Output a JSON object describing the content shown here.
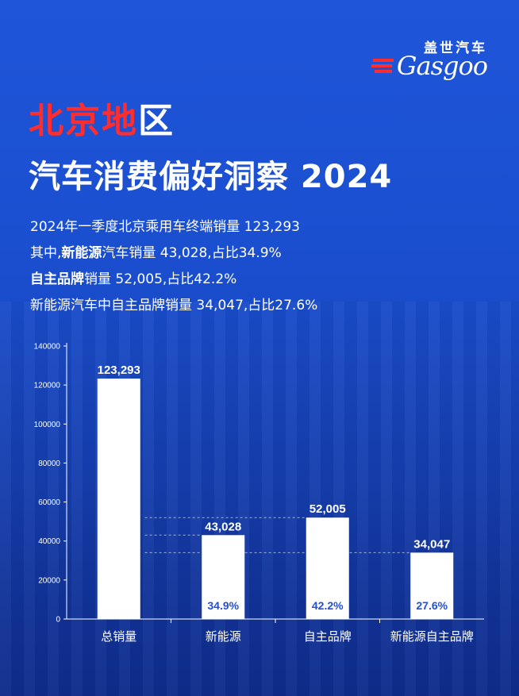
{
  "brand": {
    "name_cn": "盖世汽车",
    "name_en": "Gasgoo"
  },
  "title": {
    "line1_red": "北京地",
    "line1_white": "区",
    "line2": "汽车消费偏好洞察 2024"
  },
  "stats": {
    "line1": "2024年一季度北京乘用车终端销量 123,293",
    "line2_prefix": "其中,",
    "line2_bold": "新能源",
    "line2_suffix": "汽车销量 43,028,占比34.9%",
    "line3_bold": "自主品牌",
    "line3_suffix": "销量 52,005,占比42.2%",
    "line4": "新能源汽车中自主品牌销量 34,047,占比27.6%"
  },
  "chart_data": {
    "type": "bar",
    "categories": [
      "总销量",
      "新能源",
      "自主品牌",
      "新能源自主品牌"
    ],
    "values": [
      123293,
      43028,
      52005,
      34047
    ],
    "value_labels": [
      "123,293",
      "43,028",
      "52,005",
      "34,047"
    ],
    "percent_labels": [
      "",
      "34.9%",
      "42.2%",
      "27.6%"
    ],
    "yticks": [
      0,
      20000,
      40000,
      60000,
      80000,
      100000,
      120000,
      140000
    ],
    "ylim": [
      0,
      140000
    ],
    "title": "",
    "xlabel": "",
    "ylabel": "",
    "grid": false,
    "reference_lines": [
      52005,
      43028,
      34047
    ],
    "colors": {
      "bar": "#ffffff",
      "percent_text": "#2150d2",
      "axis": "#ffffff"
    }
  }
}
